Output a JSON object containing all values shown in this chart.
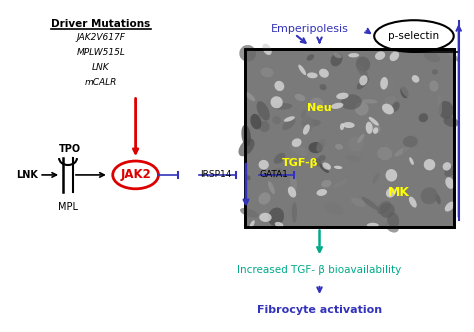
{
  "background": "#ffffff",
  "driver_mutations_title": "Driver Mutations",
  "driver_mutations_items": [
    "JAK2V617F",
    "MPLW515L",
    "LNK",
    "mCALR"
  ],
  "tpo_label": "TPO",
  "lnk_label": "LNK",
  "mpl_label": "MPL",
  "jak2_label": "JAK2",
  "irsp14_label": "IRSP14",
  "gata1_label": "GATA1",
  "emperipolesis_label": "Emperipolesis",
  "pselectin_label": "p-selectin",
  "neu_label": "Neu",
  "tgfb_label": "TGF-β",
  "mk_label": "MK",
  "increased_tgf_label": "Increased TGF- β bioavailability",
  "fibrocyte_label": "Fibrocyte activation",
  "color_red": "#dd0000",
  "color_blue": "#3333bb",
  "color_darkblue": "#3333bb",
  "color_teal": "#00aa88",
  "color_black": "#000000",
  "color_yellow": "#ffff00"
}
